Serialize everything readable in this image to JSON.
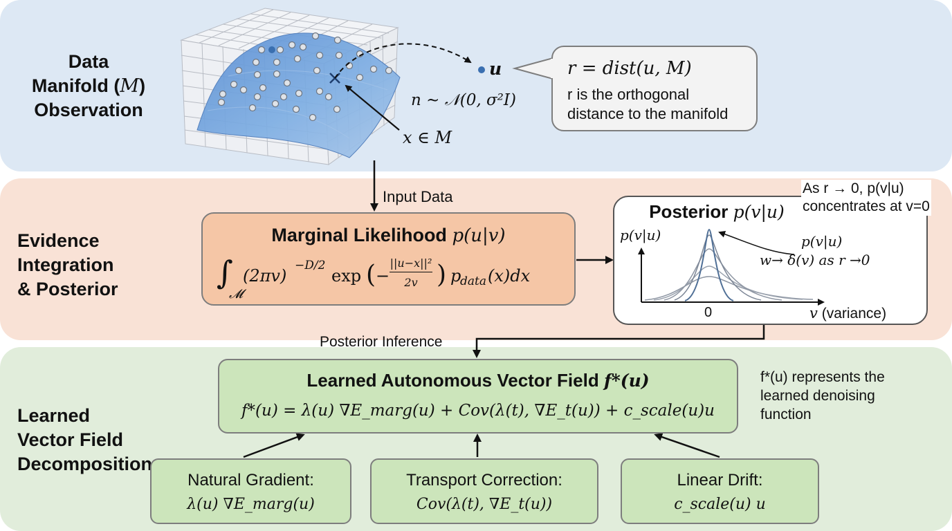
{
  "sections": {
    "observation": {
      "label_line1": "Data",
      "label_line2": "Manifold (",
      "label_line2_math": "M",
      "label_line2_end": ")",
      "label_line3": "Observation"
    },
    "evidence": {
      "label_line1": "Evidence",
      "label_line2": "Integration",
      "label_line3": "& Posterior"
    },
    "decomposition": {
      "label_line1": "Learned",
      "label_line2": "Vector Field",
      "label_line3": "Decomposition"
    }
  },
  "manifold": {
    "point_u": "u",
    "point_x": "x ∈ M",
    "noise": "n ∼ 𝒩(0, σ²I)"
  },
  "callout": {
    "formula": "r = dist(u, M)",
    "desc_line1": "r is the orthogonal",
    "desc_line2": "distance to the manifold"
  },
  "edges": {
    "input_data": "Input Data",
    "posterior_inference": "Posterior Inference"
  },
  "marginal": {
    "title": "Marginal Likelihood",
    "title_math": "p(u|v)",
    "formula_int": "∫",
    "formula_sub": "𝓜",
    "formula_body1": "(2πv)",
    "formula_exp": "−D/2",
    "formula_body2": "exp",
    "frac_num": "||u−x||²",
    "frac_den": "2v",
    "formula_tail": "p",
    "formula_tail_sub": "data",
    "formula_tail_end": "(x)dx"
  },
  "posterior": {
    "title": "Posterior",
    "title_math": "p(v|u)",
    "y_axis_label": "p(v|u)",
    "x_tick_zero": "0",
    "x_axis_label_math": "v",
    "x_axis_label_text": "(variance)",
    "annotation_line1": "p(v|u)",
    "annotation_line2": "w→ δ(v) as r →0",
    "note_line1": "As r → 0, p(v|u)",
    "note_line2": "concentrates at v=0"
  },
  "vector_field": {
    "title": "Learned Autonomous Vector Field",
    "title_math": "f*(u)",
    "equation": "f*(u) = λ(u) ∇E_marg(u) + Cov(λ(t), ∇E_t(u)) + c_scale(u)u",
    "side_note_line1": "f*(u) represents the",
    "side_note_line2": "learned denoising",
    "side_note_line3": "function"
  },
  "components": {
    "natural_gradient": {
      "title": "Natural Gradient:",
      "formula": "λ(u) ∇E_marg(u)"
    },
    "transport_correction": {
      "title": "Transport Correction:",
      "formula": "Cov(λ(t), ∇E_t(u))"
    },
    "linear_drift": {
      "title": "Linear Drift:",
      "formula": "c_scale(u) u"
    }
  },
  "colors": {
    "band_observation": "#dde8f4",
    "band_evidence": "#f9e2d6",
    "band_decomposition": "#e1eddb",
    "marginal_box": "#f5c6a6",
    "vector_box": "#cce5bb",
    "manifold_surface": "#6f9fd8",
    "point_u": "#3a6fb0",
    "curve": "#7a8da8"
  }
}
